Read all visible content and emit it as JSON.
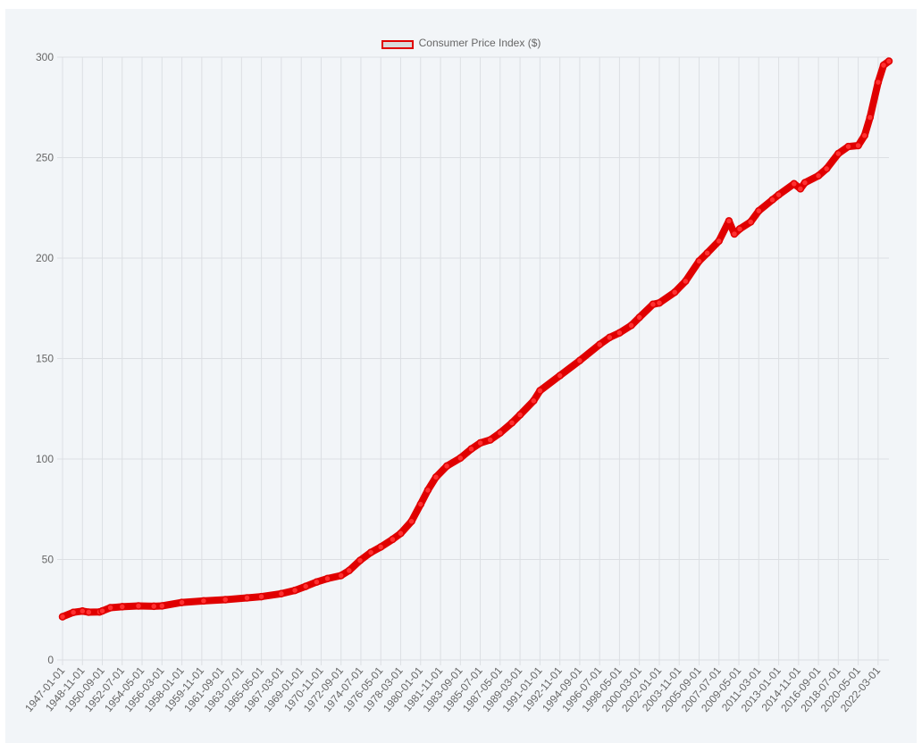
{
  "chart_data": {
    "type": "line",
    "title": "",
    "xlabel": "",
    "ylabel": "",
    "series": [
      {
        "name": "Consumer Price Index ($)",
        "color": "#e00000",
        "points": [
          [
            "1947-01-01",
            21.5
          ],
          [
            "1948-01-01",
            23.7
          ],
          [
            "1948-11-01",
            24.3
          ],
          [
            "1949-06-01",
            23.8
          ],
          [
            "1950-06-01",
            23.9
          ],
          [
            "1950-09-01",
            24.4
          ],
          [
            "1951-06-01",
            26.0
          ],
          [
            "1952-07-01",
            26.5
          ],
          [
            "1954-01-01",
            26.9
          ],
          [
            "1955-06-01",
            26.7
          ],
          [
            "1956-03-01",
            26.9
          ],
          [
            "1958-01-01",
            28.6
          ],
          [
            "1960-01-01",
            29.4
          ],
          [
            "1962-01-01",
            30.0
          ],
          [
            "1964-01-01",
            30.9
          ],
          [
            "1965-05-01",
            31.5
          ],
          [
            "1967-03-01",
            33.0
          ],
          [
            "1968-06-01",
            34.6
          ],
          [
            "1969-06-01",
            36.6
          ],
          [
            "1970-06-01",
            38.8
          ],
          [
            "1971-06-01",
            40.5
          ],
          [
            "1972-09-01",
            42.0
          ],
          [
            "1973-06-01",
            44.5
          ],
          [
            "1974-06-01",
            49.5
          ],
          [
            "1975-06-01",
            53.5
          ],
          [
            "1976-05-01",
            56.2
          ],
          [
            "1977-06-01",
            60.0
          ],
          [
            "1978-03-01",
            63.0
          ],
          [
            "1979-03-01",
            69.0
          ],
          [
            "1980-01-01",
            77.5
          ],
          [
            "1980-09-01",
            84.5
          ],
          [
            "1981-06-01",
            91.0
          ],
          [
            "1982-06-01",
            96.5
          ],
          [
            "1983-09-01",
            100.5
          ],
          [
            "1984-09-01",
            105.0
          ],
          [
            "1985-07-01",
            108.0
          ],
          [
            "1986-06-01",
            109.5
          ],
          [
            "1987-05-01",
            113.0
          ],
          [
            "1988-06-01",
            118.0
          ],
          [
            "1989-03-01",
            122.0
          ],
          [
            "1990-06-01",
            129.0
          ],
          [
            "1991-01-01",
            134.0
          ],
          [
            "1992-11-01",
            141.5
          ],
          [
            "1994-09-01",
            149.0
          ],
          [
            "1996-07-01",
            157.0
          ],
          [
            "1997-06-01",
            160.5
          ],
          [
            "1998-05-01",
            162.8
          ],
          [
            "1999-06-01",
            166.5
          ],
          [
            "2000-03-01",
            170.5
          ],
          [
            "2001-06-01",
            177.0
          ],
          [
            "2002-01-01",
            177.7
          ],
          [
            "2003-06-01",
            183.0
          ],
          [
            "2004-06-01",
            188.5
          ],
          [
            "2005-09-01",
            198.5
          ],
          [
            "2006-06-01",
            202.5
          ],
          [
            "2007-07-01",
            208.5
          ],
          [
            "2008-06-01",
            218.5
          ],
          [
            "2008-12-01",
            212.0
          ],
          [
            "2009-06-01",
            214.5
          ],
          [
            "2010-06-01",
            218.0
          ],
          [
            "2011-03-01",
            223.5
          ],
          [
            "2012-06-01",
            229.0
          ],
          [
            "2013-01-01",
            231.5
          ],
          [
            "2014-06-01",
            237.0
          ],
          [
            "2015-01-01",
            234.5
          ],
          [
            "2015-06-01",
            237.5
          ],
          [
            "2016-09-01",
            241.0
          ],
          [
            "2017-06-01",
            244.5
          ],
          [
            "2018-07-01",
            252.0
          ],
          [
            "2019-06-01",
            255.5
          ],
          [
            "2020-05-01",
            256.0
          ],
          [
            "2020-12-01",
            261.0
          ],
          [
            "2021-06-01",
            270.0
          ],
          [
            "2022-03-01",
            287.5
          ],
          [
            "2022-09-01",
            296.0
          ],
          [
            "2023-03-01",
            298.0
          ]
        ]
      }
    ],
    "x_tick_labels": [
      "1947-01-01",
      "1948-11-01",
      "1950-09-01",
      "1952-07-01",
      "1954-05-01",
      "1956-03-01",
      "1958-01-01",
      "1959-11-01",
      "1961-09-01",
      "1963-07-01",
      "1965-05-01",
      "1967-03-01",
      "1969-01-01",
      "1970-11-01",
      "1972-09-01",
      "1974-07-01",
      "1976-05-01",
      "1978-03-01",
      "1980-01-01",
      "1981-11-01",
      "1983-09-01",
      "1985-07-01",
      "1987-05-01",
      "1989-03-01",
      "1991-01-01",
      "1992-11-01",
      "1994-09-01",
      "1996-07-01",
      "1998-05-01",
      "2000-03-01",
      "2002-01-01",
      "2003-11-01",
      "2005-09-01",
      "2007-07-01",
      "2009-05-01",
      "2011-03-01",
      "2013-01-01",
      "2014-11-01",
      "2016-09-01",
      "2018-07-01",
      "2020-05-01",
      "2022-03-01"
    ],
    "x_range": [
      "1947-01-01",
      "2023-03-01"
    ],
    "y_ticks": [
      0,
      50,
      100,
      150,
      200,
      250,
      300
    ],
    "ylim": [
      0,
      300
    ],
    "grid": true,
    "legend_position": "top-center"
  }
}
